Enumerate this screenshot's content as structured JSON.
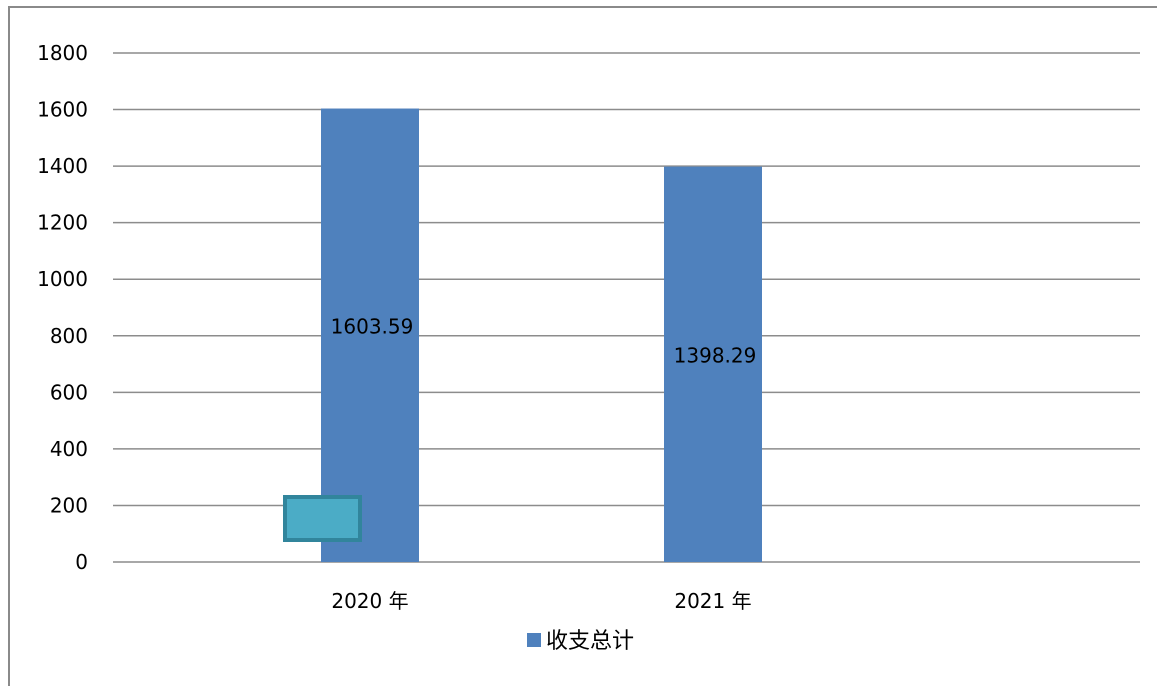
{
  "chart_data": {
    "type": "bar",
    "categories": [
      "2020 年",
      "2021 年"
    ],
    "series": [
      {
        "name": "收支总计",
        "values": [
          1603.59,
          1398.29
        ],
        "color": "#4f81bd"
      }
    ],
    "data_labels": [
      "1603.59",
      "1398.29"
    ],
    "ylim": [
      0,
      1800
    ],
    "yticks": [
      0,
      200,
      400,
      600,
      800,
      1000,
      1200,
      1400,
      1600,
      1800
    ],
    "grid": true,
    "legend": "bottom",
    "title": "",
    "xlabel": "",
    "ylabel": ""
  },
  "colors": {
    "bar": "#4f81bd",
    "grid": "#8c8c8c",
    "overlay_fill": "#4bacc6",
    "overlay_border": "#31859c"
  }
}
